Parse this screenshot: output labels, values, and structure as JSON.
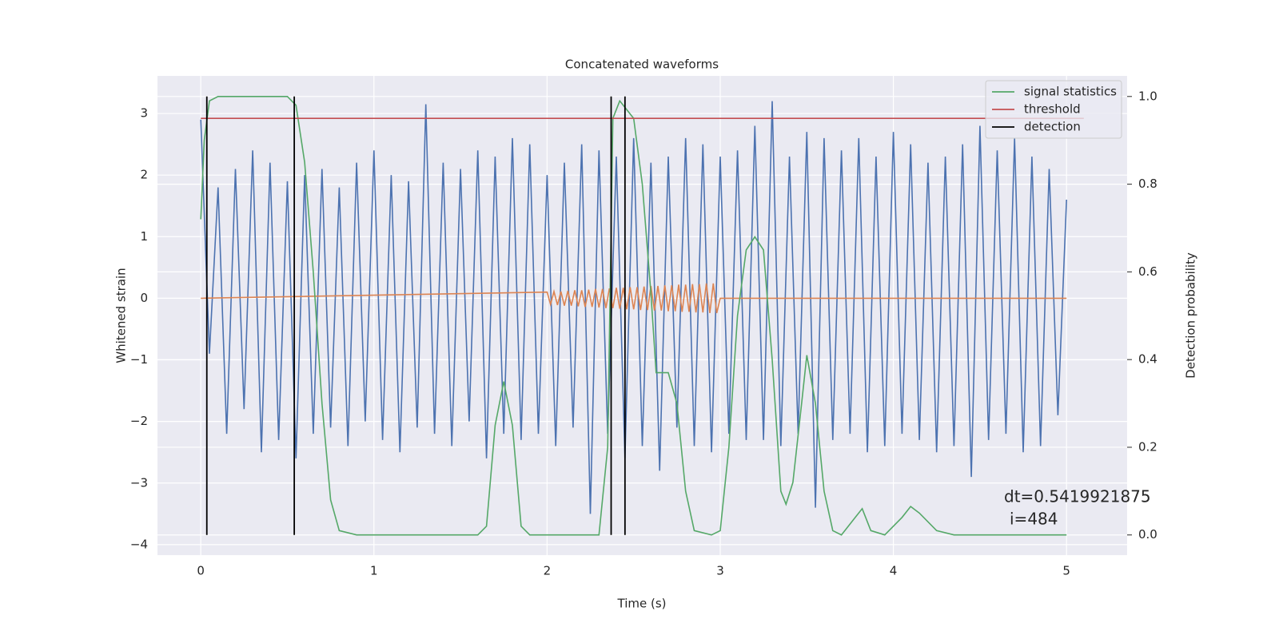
{
  "chart_data": {
    "type": "line",
    "title": "Concatenated waveforms",
    "xlabel": "Time (s)",
    "ylabel": "Whitened strain",
    "y2label": "Detection probability",
    "xlim": [
      -0.25,
      5.35
    ],
    "xticks": [
      0,
      1,
      2,
      3,
      4,
      5
    ],
    "ylim": [
      -4.17,
      3.61
    ],
    "yticks": [
      {
        "value": -4,
        "label": "−4"
      },
      {
        "value": -3,
        "label": "−3"
      },
      {
        "value": -2,
        "label": "−2"
      },
      {
        "value": -1,
        "label": "−1"
      },
      0,
      1,
      2,
      3
    ],
    "y2lim": [
      -0.046,
      1.047
    ],
    "y2ticks": [
      {
        "value": 0,
        "label": "0.0"
      },
      0.2,
      0.4,
      0.6,
      0.8,
      {
        "value": 1,
        "label": "1.0"
      }
    ],
    "grid": true,
    "legend": "upper right",
    "annotation_lines": [
      "dt=0.5419921875",
      "i=484"
    ],
    "series": [
      {
        "color": "#4c72b0",
        "x": [
          0,
          0.05,
          0.1,
          0.15,
          0.2,
          0.25,
          0.3,
          0.35,
          0.4,
          0.45,
          0.5,
          0.55,
          0.6,
          0.65,
          0.7,
          0.75,
          0.8,
          0.85,
          0.9,
          0.95,
          1,
          1.05,
          1.1,
          1.15,
          1.2,
          1.25,
          1.3,
          1.35,
          1.4,
          1.45,
          1.5,
          1.55,
          1.6,
          1.65,
          1.7,
          1.75,
          1.8,
          1.85,
          1.9,
          1.95,
          2,
          2.05,
          2.1,
          2.15,
          2.2,
          2.25,
          2.3,
          2.35,
          2.4,
          2.45,
          2.5,
          2.55,
          2.6,
          2.65,
          2.7,
          2.75,
          2.8,
          2.85,
          2.9,
          2.95,
          3,
          3.05,
          3.1,
          3.15,
          3.2,
          3.25,
          3.3,
          3.35,
          3.4,
          3.45,
          3.5,
          3.55,
          3.6,
          3.65,
          3.7,
          3.75,
          3.8,
          3.85,
          3.9,
          3.95,
          4,
          4.05,
          4.1,
          4.15,
          4.2,
          4.25,
          4.3,
          4.35,
          4.4,
          4.45,
          4.5,
          4.55,
          4.6,
          4.65,
          4.7,
          4.75,
          4.8,
          4.85,
          4.9,
          4.95,
          5
        ],
        "values": [
          2.9,
          -0.9,
          1.8,
          -2.2,
          2.1,
          -1.8,
          2.4,
          -2.5,
          2.2,
          -2.3,
          1.9,
          -2.6,
          2.0,
          -2.2,
          2.1,
          -2.1,
          1.8,
          -2.4,
          2.2,
          -2.0,
          2.4,
          -2.3,
          2.0,
          -2.5,
          1.9,
          -2.1,
          3.15,
          -2.2,
          2.2,
          -2.4,
          2.1,
          -2.0,
          2.4,
          -2.6,
          2.3,
          -2.2,
          2.6,
          -2.3,
          2.5,
          -2.2,
          2.0,
          -2.4,
          2.2,
          -2.1,
          2.5,
          -3.5,
          2.4,
          -2.2,
          2.3,
          -2.6,
          2.6,
          -2.4,
          2.2,
          -2.8,
          2.3,
          -2.1,
          2.6,
          -2.4,
          2.5,
          -2.5,
          2.3,
          -2.2,
          2.4,
          -2.3,
          2.8,
          -2.3,
          3.2,
          -2.4,
          2.3,
          -2.2,
          2.7,
          -3.4,
          2.6,
          -2.3,
          2.4,
          -2.2,
          2.6,
          -2.5,
          2.3,
          -2.4,
          2.7,
          -2.2,
          2.5,
          -2.3,
          2.2,
          -2.5,
          2.3,
          -2.4,
          2.5,
          -2.9,
          2.8,
          -2.3,
          2.4,
          -2.2,
          2.6,
          -2.5,
          2.3,
          -2.4,
          2.1,
          -1.9,
          1.6
        ]
      },
      {
        "color": "#dd8452",
        "x": [
          0,
          2,
          2.02,
          2.04,
          2.06,
          2.08,
          2.1,
          2.12,
          2.14,
          2.16,
          2.18,
          2.2,
          2.22,
          2.24,
          2.26,
          2.28,
          2.3,
          2.32,
          2.34,
          2.36,
          2.38,
          2.4,
          2.42,
          2.44,
          2.46,
          2.48,
          2.5,
          2.52,
          2.54,
          2.56,
          2.58,
          2.6,
          2.62,
          2.64,
          2.66,
          2.68,
          2.7,
          2.72,
          2.74,
          2.76,
          2.78,
          2.8,
          2.82,
          2.84,
          2.86,
          2.88,
          2.9,
          2.92,
          2.94,
          2.96,
          2.98,
          3,
          5
        ],
        "values": [
          0,
          0.1,
          -0.1,
          0.11,
          -0.11,
          0.11,
          -0.12,
          0.12,
          -0.12,
          0.13,
          -0.13,
          0.13,
          -0.14,
          0.14,
          -0.14,
          0.15,
          -0.15,
          0.15,
          -0.16,
          0.16,
          -0.16,
          0.17,
          -0.17,
          0.17,
          -0.18,
          0.18,
          -0.18,
          0.18,
          -0.19,
          0.19,
          -0.19,
          0.2,
          -0.2,
          0.2,
          -0.2,
          0.21,
          -0.21,
          0.21,
          -0.21,
          0.22,
          -0.22,
          0.22,
          -0.22,
          0.23,
          -0.23,
          0.23,
          -0.23,
          0.24,
          -0.24,
          0.24,
          -0.24,
          0,
          0
        ]
      },
      {
        "name": "signal statistics",
        "color": "#55a868",
        "axis": "y2",
        "x": [
          0,
          0.02,
          0.05,
          0.1,
          0.5,
          0.55,
          0.6,
          0.65,
          0.7,
          0.75,
          0.8,
          0.9,
          1.6,
          1.65,
          1.7,
          1.75,
          1.8,
          1.85,
          1.9,
          2.3,
          2.35,
          2.38,
          2.42,
          2.5,
          2.55,
          2.6,
          2.63,
          2.7,
          2.75,
          2.8,
          2.85,
          2.95,
          3,
          3.05,
          3.1,
          3.15,
          3.2,
          3.25,
          3.3,
          3.35,
          3.38,
          3.42,
          3.47,
          3.5,
          3.55,
          3.6,
          3.65,
          3.7,
          3.78,
          3.82,
          3.87,
          3.95,
          4.05,
          4.1,
          4.15,
          4.25,
          4.35,
          5
        ],
        "values": [
          0.72,
          0.9,
          0.99,
          1,
          1,
          0.98,
          0.85,
          0.6,
          0.3,
          0.08,
          0.01,
          0,
          0,
          0.02,
          0.25,
          0.35,
          0.25,
          0.02,
          0,
          0,
          0.2,
          0.95,
          0.99,
          0.95,
          0.8,
          0.55,
          0.37,
          0.37,
          0.3,
          0.1,
          0.01,
          0,
          0.01,
          0.2,
          0.5,
          0.65,
          0.68,
          0.65,
          0.4,
          0.1,
          0.07,
          0.12,
          0.3,
          0.41,
          0.3,
          0.1,
          0.01,
          0,
          0.04,
          0.06,
          0.01,
          0,
          0.04,
          0.065,
          0.05,
          0.01,
          0,
          0
        ]
      },
      {
        "name": "threshold",
        "color": "#c44e52",
        "axis": "y2",
        "x": [
          0,
          5.1
        ],
        "values": [
          0.95,
          0.95
        ]
      },
      {
        "name": "detection",
        "color": "#000000",
        "axis": "y2",
        "type": "vline",
        "x": [
          0.035,
          0.54,
          2.37,
          2.45
        ]
      }
    ]
  }
}
